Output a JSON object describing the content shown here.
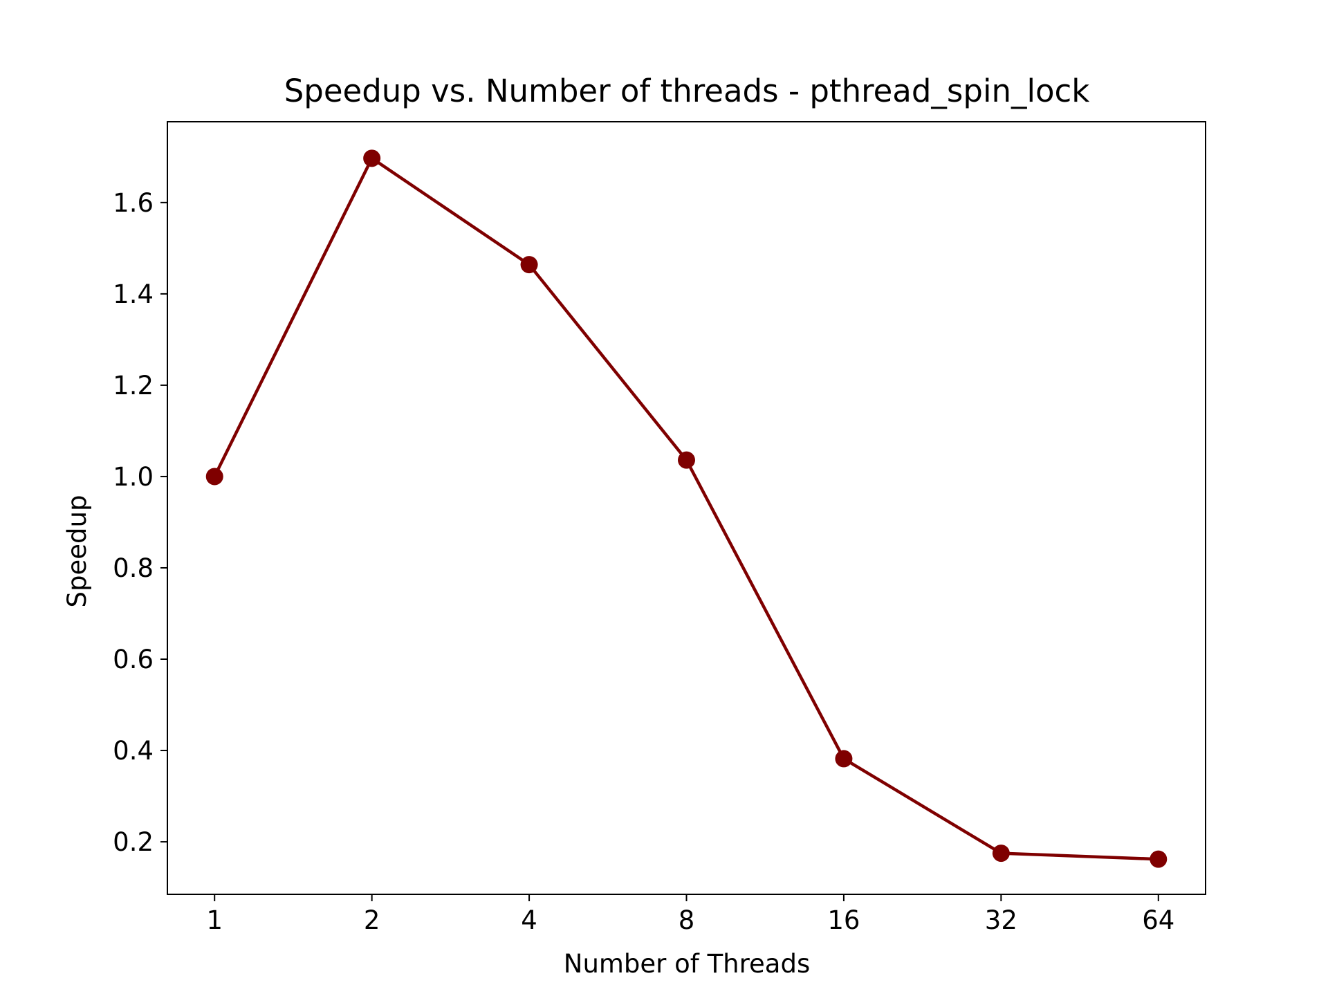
{
  "colors": {
    "series": "#7f0000",
    "axes": "#000000",
    "background": "#ffffff"
  },
  "chart_data": {
    "type": "line",
    "title": "Speedup vs. Number of threads - pthread_spin_lock",
    "xlabel": "Number of Threads",
    "ylabel": "Speedup",
    "x_scale": "log2",
    "x": [
      1,
      2,
      4,
      8,
      16,
      32,
      64
    ],
    "x_tick_labels": [
      "1",
      "2",
      "4",
      "8",
      "16",
      "32",
      "64"
    ],
    "y_ticks": [
      0.2,
      0.4,
      0.6,
      0.8,
      1.0,
      1.2,
      1.4,
      1.6
    ],
    "y_tick_labels": [
      "0.2",
      "0.4",
      "0.6",
      "0.8",
      "1.0",
      "1.2",
      "1.4",
      "1.6"
    ],
    "ylim": [
      0.085,
      1.777
    ],
    "grid": false,
    "series": [
      {
        "values": [
          1.0,
          1.697,
          1.464,
          1.036,
          0.382,
          0.175,
          0.162
        ],
        "color": "#7f0000",
        "marker": "circle"
      }
    ]
  }
}
